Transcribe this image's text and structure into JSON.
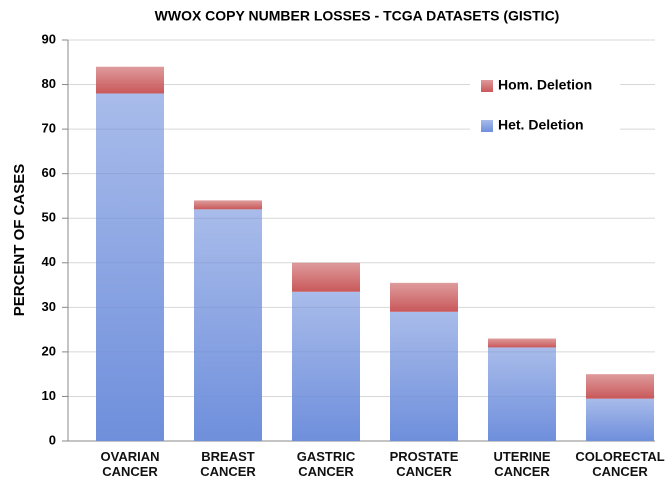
{
  "chart_data": {
    "type": "stacked_bar",
    "title": "WWOX COPY NUMBER LOSSES - TCGA DATASETS (GISTIC)",
    "y_label": "PERCENT OF CASES",
    "categories": [
      "OVARIAN CANCER",
      "BREAST CANCER",
      "GASTRIC CANCER",
      "PROSTATE CANCER",
      "UTERINE CANCER",
      "COLORECTAL CANCER"
    ],
    "series": [
      {
        "name": "Het. Deletion",
        "color": "#6f8fdc",
        "values": [
          78,
          52,
          33.5,
          29,
          21,
          9.5
        ]
      },
      {
        "name": "Hom. Deletion",
        "color": "#c9585a",
        "values": [
          6,
          2,
          6.5,
          6.5,
          2,
          5.5
        ]
      }
    ],
    "ylim": [
      0,
      90
    ],
    "yticks": [
      0,
      10,
      20,
      30,
      40,
      50,
      60,
      70,
      80,
      90
    ],
    "grid": true,
    "legend": "top-right"
  }
}
